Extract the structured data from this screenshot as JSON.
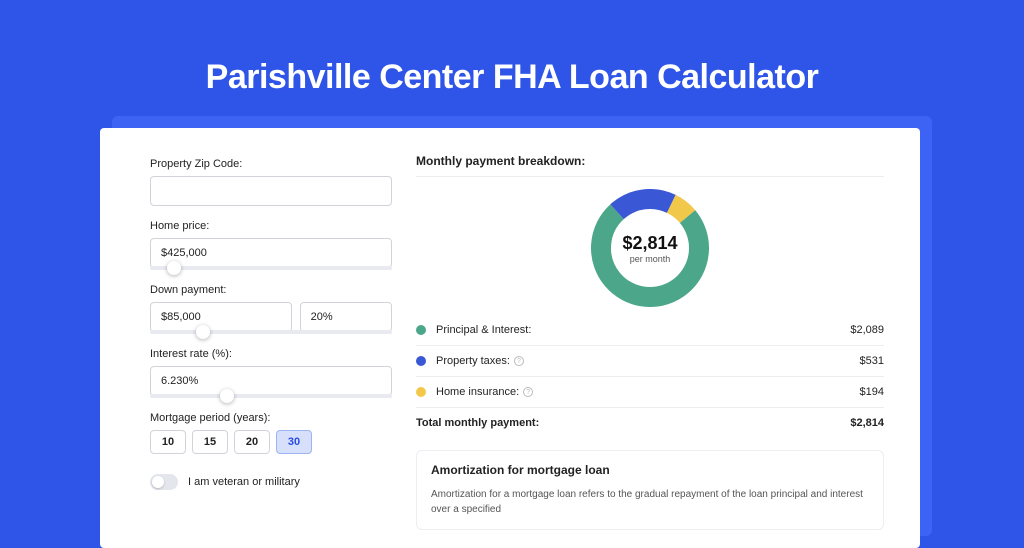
{
  "hero": {
    "title": "Parishville Center FHA Loan Calculator"
  },
  "colors": {
    "page_bg": "#2f55e8",
    "offset_bg": "#3d63f5",
    "card_bg": "#ffffff",
    "border": "#d0d3da",
    "slider_track": "#e8eaf0",
    "slider_thumb": "#ffffff",
    "period_selected_bg": "#d7e0fb",
    "period_selected_border": "#9db3f2",
    "period_selected_text": "#2b4be0",
    "divider": "#edeef2"
  },
  "form": {
    "zip": {
      "label": "Property Zip Code:",
      "value": ""
    },
    "home_price": {
      "label": "Home price:",
      "value": "$425,000",
      "slider_pct": 10
    },
    "down_payment": {
      "label": "Down payment:",
      "amount": "$85,000",
      "pct": "20%",
      "slider_pct": 22
    },
    "interest_rate": {
      "label": "Interest rate (%):",
      "value": "6.230%",
      "slider_pct": 32
    },
    "period": {
      "label": "Mortgage period (years):",
      "options": [
        "10",
        "15",
        "20",
        "30"
      ],
      "selected": "30"
    },
    "veteran": {
      "label": "I am veteran or military",
      "on": false
    }
  },
  "breakdown": {
    "title": "Monthly payment breakdown:",
    "donut": {
      "amount": "$2,814",
      "sub": "per month",
      "size": 118,
      "thickness": 20,
      "slices": [
        {
          "key": "principal_interest",
          "value": 2089,
          "color": "#4ba68a"
        },
        {
          "key": "property_taxes",
          "value": 531,
          "color": "#3a57d6"
        },
        {
          "key": "home_insurance",
          "value": 194,
          "color": "#f2c84b"
        }
      ]
    },
    "rows": [
      {
        "dot": "#4ba68a",
        "label": "Principal & Interest:",
        "info": false,
        "value": "$2,089"
      },
      {
        "dot": "#3a57d6",
        "label": "Property taxes:",
        "info": true,
        "value": "$531"
      },
      {
        "dot": "#f2c84b",
        "label": "Home insurance:",
        "info": true,
        "value": "$194"
      }
    ],
    "total": {
      "label": "Total monthly payment:",
      "value": "$2,814"
    }
  },
  "amortization": {
    "title": "Amortization for mortgage loan",
    "text": "Amortization for a mortgage loan refers to the gradual repayment of the loan principal and interest over a specified"
  }
}
